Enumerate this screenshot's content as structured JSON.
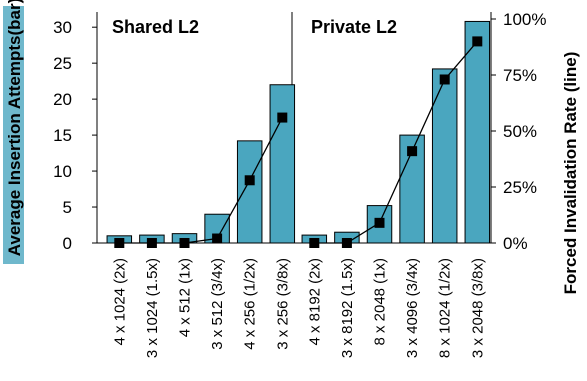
{
  "chart_data": {
    "type": "bar",
    "title": "",
    "ylabel": "Average Insertion Attempts(bar)",
    "ylabel_highlight": "#6fb8cc",
    "y2label": "Forced Invalidation Rate (line)",
    "ylim": [
      0,
      31
    ],
    "yticks": [
      0,
      5,
      10,
      15,
      20,
      25,
      30
    ],
    "y2lim": [
      0,
      100
    ],
    "y2ticks": [
      "0%",
      "25%",
      "50%",
      "75%",
      "100%"
    ],
    "bar_color": "#4aa6bf",
    "line_color": "#000000",
    "grid": false,
    "panels": [
      {
        "title": "Shared L2",
        "categories": [
          "4 x 1024 (2x)",
          "3 x 1024 (1.5x)",
          "4 x 512 (1x)",
          "3 x 512 (3/4x)",
          "4 x 256 (1/2x)",
          "3 x 256 (3/8x)"
        ],
        "bar_values": [
          1.0,
          1.1,
          1.3,
          4.0,
          14.2,
          22.0
        ],
        "line_values_pct": [
          0,
          0,
          0,
          2,
          28,
          56
        ]
      },
      {
        "title": "Private L2",
        "categories": [
          "4 x 8192  (2x)",
          "3 x 8192 (1.5x)",
          "8 x 2048  (1x)",
          "3 x 4096  (3/4x)",
          "8 x 1024  (1/2x)",
          "3 x 2048  (3/8x)"
        ],
        "bar_values": [
          1.1,
          1.5,
          5.2,
          15.0,
          24.2,
          30.8
        ],
        "line_values_pct": [
          0,
          0,
          9,
          41,
          73,
          90
        ]
      }
    ]
  }
}
